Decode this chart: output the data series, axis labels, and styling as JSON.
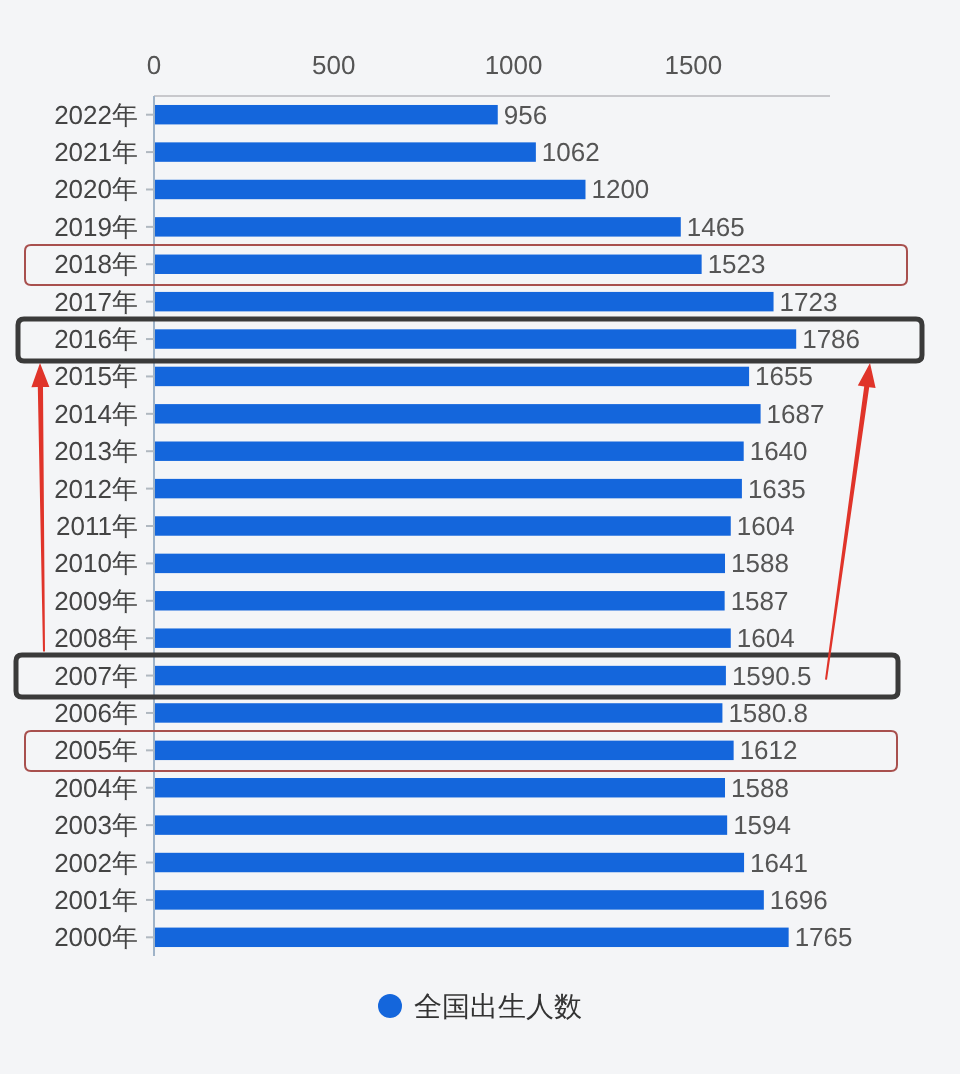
{
  "chart_data": {
    "type": "bar",
    "orientation": "horizontal",
    "categories": [
      "2022年",
      "2021年",
      "2020年",
      "2019年",
      "2018年",
      "2017年",
      "2016年",
      "2015年",
      "2014年",
      "2013年",
      "2012年",
      "2011年",
      "2010年",
      "2009年",
      "2008年",
      "2007年",
      "2006年",
      "2005年",
      "2004年",
      "2003年",
      "2002年",
      "2001年",
      "2000年"
    ],
    "series": [
      {
        "name": "全国出生人数",
        "color": "#1466dc",
        "values": [
          956,
          1062,
          1200,
          1465,
          1523,
          1723,
          1786,
          1655,
          1687,
          1640,
          1635,
          1604,
          1588,
          1587,
          1604,
          1590.5,
          1580.8,
          1612,
          1588,
          1594,
          1641,
          1696,
          1765
        ]
      }
    ],
    "xlim": [
      0,
      1880
    ],
    "xticks": [
      0,
      500,
      1000,
      1500
    ],
    "data_labels": true,
    "legend": "bottom",
    "grid": false
  }
}
